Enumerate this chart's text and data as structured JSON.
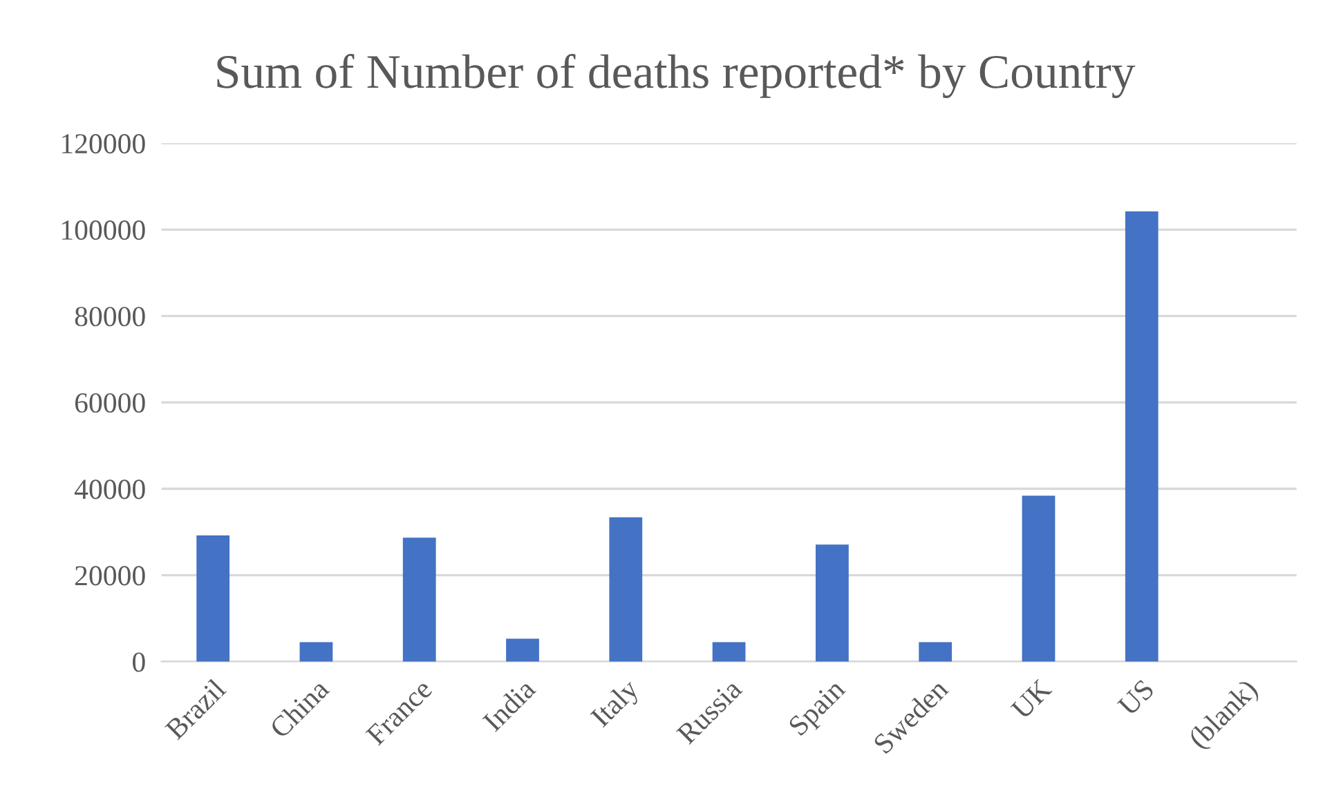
{
  "chart_data": {
    "type": "bar",
    "title": "Sum of Number of deaths reported* by Country",
    "categories": [
      "Brazil",
      "China",
      "France",
      "India",
      "Italy",
      "Russia",
      "Spain",
      "Sweden",
      "UK",
      "US",
      "(blank)"
    ],
    "values": [
      29200,
      4500,
      28700,
      5300,
      33400,
      4500,
      27100,
      4500,
      38400,
      104200,
      null
    ],
    "color": "#4472c4",
    "ylim": [
      0,
      120000
    ],
    "yticks": [
      0,
      20000,
      40000,
      60000,
      80000,
      100000,
      120000
    ],
    "grid": "y"
  }
}
